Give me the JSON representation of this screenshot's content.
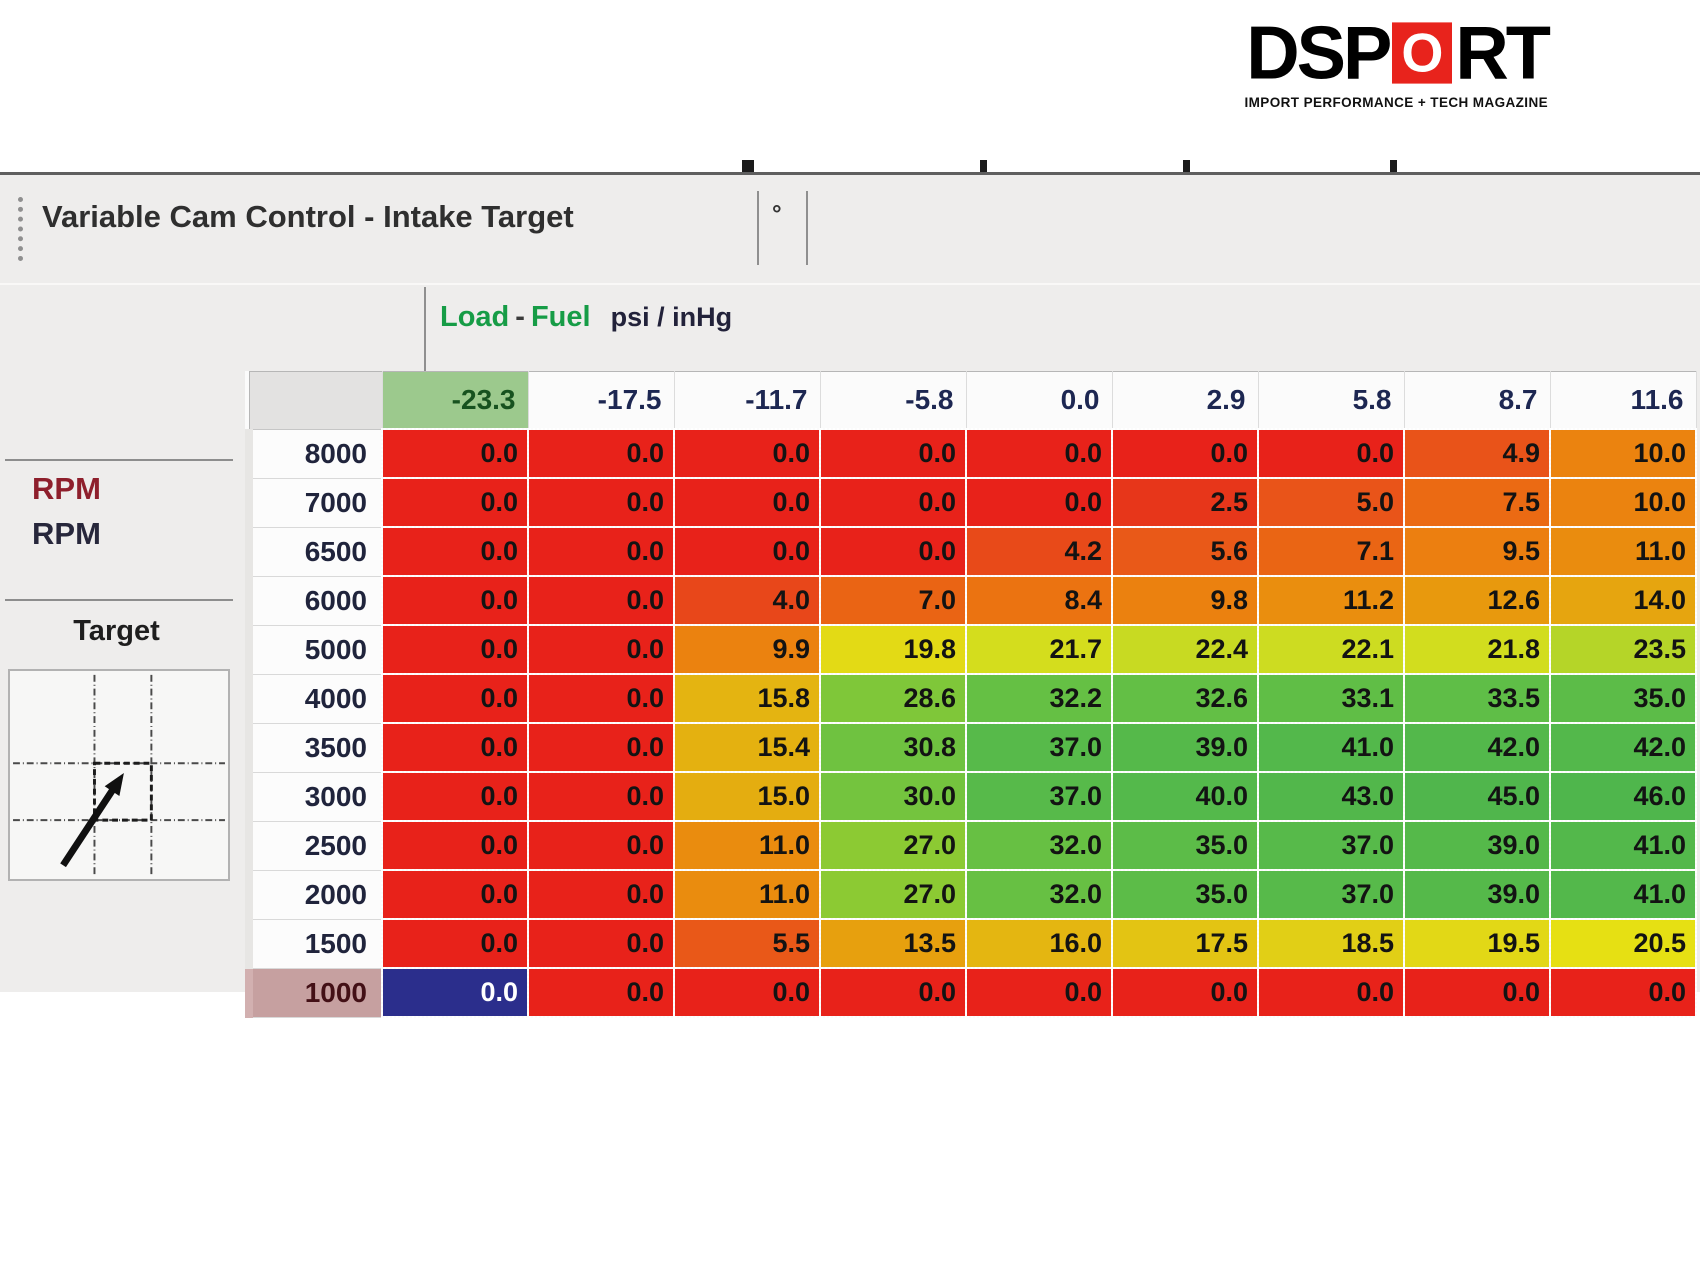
{
  "logo": {
    "prefix": "DSP",
    "o": "O",
    "suffix": "RT",
    "tagline": "IMPORT PERFORMANCE + TECH MAGAZINE",
    "accent_color": "#e8231c"
  },
  "window": {
    "title": "Variable Cam Control - Intake Target",
    "unit_symbol": "°",
    "axis": {
      "load": "Load",
      "dash": "-",
      "fuel": "Fuel",
      "units": "psi / inHg",
      "label_color": "#169c46"
    },
    "left_panel": {
      "rpm_primary": "RPM",
      "rpm_secondary": "RPM",
      "target_label": "Target"
    }
  },
  "chart_data": {
    "type": "heatmap",
    "title": "Variable Cam Control - Intake Target",
    "x_axis_label": "Load - Fuel (psi / inHg)",
    "y_axis_label": "RPM",
    "columns": [
      "-23.3",
      "-17.5",
      "-11.7",
      "-5.8",
      "0.0",
      "2.9",
      "5.8",
      "8.7",
      "11.6"
    ],
    "rows": [
      "8000",
      "7000",
      "6500",
      "6000",
      "5000",
      "4000",
      "3500",
      "3000",
      "2500",
      "2000",
      "1500",
      "1000"
    ],
    "values": [
      [
        0.0,
        0.0,
        0.0,
        0.0,
        0.0,
        0.0,
        0.0,
        4.9,
        10.0
      ],
      [
        0.0,
        0.0,
        0.0,
        0.0,
        0.0,
        2.5,
        5.0,
        7.5,
        10.0
      ],
      [
        0.0,
        0.0,
        0.0,
        0.0,
        4.2,
        5.6,
        7.1,
        9.5,
        11.0
      ],
      [
        0.0,
        0.0,
        4.0,
        7.0,
        8.4,
        9.8,
        11.2,
        12.6,
        14.0
      ],
      [
        0.0,
        0.0,
        9.9,
        19.8,
        21.7,
        22.4,
        22.1,
        21.8,
        23.5
      ],
      [
        0.0,
        0.0,
        15.8,
        28.6,
        32.2,
        32.6,
        33.1,
        33.5,
        35.0
      ],
      [
        0.0,
        0.0,
        15.4,
        30.8,
        37.0,
        39.0,
        41.0,
        42.0,
        42.0
      ],
      [
        0.0,
        0.0,
        15.0,
        30.0,
        37.0,
        40.0,
        43.0,
        45.0,
        46.0
      ],
      [
        0.0,
        0.0,
        11.0,
        27.0,
        32.0,
        35.0,
        37.0,
        39.0,
        41.0
      ],
      [
        0.0,
        0.0,
        11.0,
        27.0,
        32.0,
        35.0,
        37.0,
        39.0,
        41.0
      ],
      [
        0.0,
        0.0,
        5.5,
        13.5,
        16.0,
        17.5,
        18.5,
        19.5,
        20.5
      ],
      [
        0.0,
        0.0,
        0.0,
        0.0,
        0.0,
        0.0,
        0.0,
        0.0,
        0.0
      ]
    ],
    "highlighted_column": 0,
    "highlighted_column_bg": "#9cc98d",
    "selected_cell": {
      "row_index": 11,
      "col_index": 0,
      "bg": "#2b2e8c",
      "text_color": "#ffffff"
    },
    "selected_row_header_bg": "#c6a0a0",
    "color_scale": [
      [
        0,
        "#e8221a"
      ],
      [
        3,
        "#e73a1a"
      ],
      [
        5,
        "#e95419"
      ],
      [
        7,
        "#ea6414"
      ],
      [
        9,
        "#ec7a10"
      ],
      [
        11,
        "#ea8c0e"
      ],
      [
        13,
        "#e89c0d"
      ],
      [
        15,
        "#e4ad10"
      ],
      [
        17,
        "#e4bf12"
      ],
      [
        19,
        "#e0d417"
      ],
      [
        20.5,
        "#e6e013"
      ],
      [
        22,
        "#cfdc20"
      ],
      [
        24,
        "#acd22a"
      ],
      [
        27,
        "#8cca33"
      ],
      [
        30,
        "#74c43e"
      ],
      [
        33,
        "#60be46"
      ],
      [
        37,
        "#57ba4a"
      ],
      [
        46,
        "#4fb64c"
      ]
    ]
  }
}
